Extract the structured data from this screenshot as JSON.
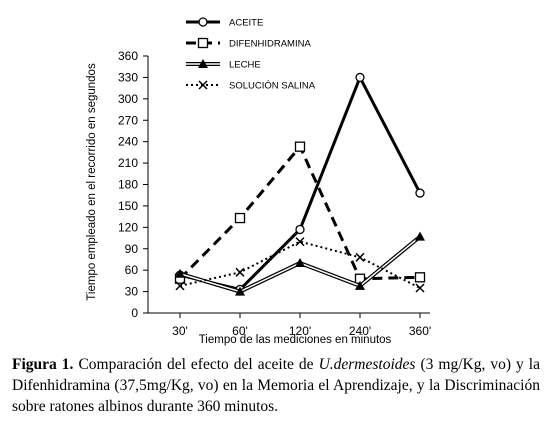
{
  "chart_data": {
    "type": "line",
    "title": "",
    "xlabel": "Tiempo de las mediciones en minutos",
    "ylabel": "Tiempo empleado en el recorrido en segundos",
    "categories": [
      "30'",
      "60'",
      "120'",
      "240'",
      "360'"
    ],
    "ylim": [
      0,
      360
    ],
    "yticks": [
      0,
      30,
      60,
      90,
      120,
      150,
      180,
      210,
      240,
      270,
      300,
      330,
      360
    ],
    "grid": false,
    "legend_position": "top",
    "series": [
      {
        "name": "ACEITE",
        "values": [
          53,
          33,
          117,
          330,
          168
        ],
        "color": "#000000",
        "marker": "circle-open",
        "line": "solid-thick"
      },
      {
        "name": "DIFENHIDRAMINA",
        "values": [
          48,
          133,
          233,
          48,
          50
        ],
        "color": "#000000",
        "marker": "square-open",
        "line": "dashed-thick"
      },
      {
        "name": "LECHE",
        "values": [
          55,
          30,
          70,
          38,
          107
        ],
        "color": "#000000",
        "marker": "triangle-filled",
        "line": "double-thin"
      },
      {
        "name": "SOLUCIÓN SALINA",
        "values": [
          38,
          57,
          100,
          78,
          35
        ],
        "color": "#000000",
        "marker": "x",
        "line": "dotted"
      }
    ]
  },
  "caption": {
    "label": "Figura 1.",
    "text_before": " Comparación del efecto del aceite de ",
    "species": "U.dermestoides",
    "text_after": " (3 mg/Kg, vo) y la Difenhidramina (37,5mg/Kg, vo) en la Memoria el Aprendizaje, y la Discriminación sobre ratones albinos durante 360 minutos."
  }
}
